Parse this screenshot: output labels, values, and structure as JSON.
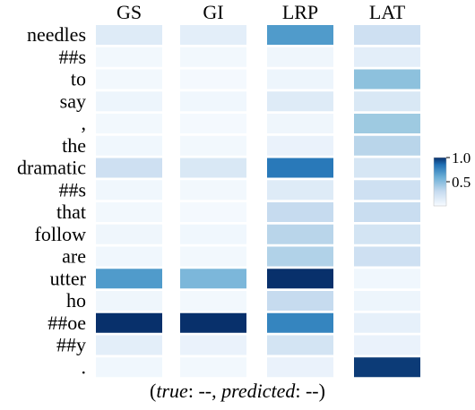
{
  "chart_data": {
    "type": "heatmap",
    "columns": [
      "GS",
      "GI",
      "LRP",
      "LAT"
    ],
    "rows": [
      "needles",
      "##s",
      "to",
      "say",
      ",",
      "the",
      "dramatic",
      "##s",
      "that",
      "follow",
      "are",
      "utter",
      "ho",
      "##oe",
      "##y",
      "."
    ],
    "values": [
      [
        0.15,
        0.12,
        0.7,
        0.25
      ],
      [
        0.03,
        0.03,
        0.05,
        0.12
      ],
      [
        0.03,
        0.02,
        0.06,
        0.5
      ],
      [
        0.06,
        0.04,
        0.15,
        0.18
      ],
      [
        0.03,
        0.02,
        0.05,
        0.45
      ],
      [
        0.04,
        0.03,
        0.08,
        0.35
      ],
      [
        0.25,
        0.18,
        0.85,
        0.2
      ],
      [
        0.04,
        0.03,
        0.15,
        0.25
      ],
      [
        0.03,
        0.02,
        0.3,
        0.28
      ],
      [
        0.05,
        0.04,
        0.35,
        0.22
      ],
      [
        0.04,
        0.03,
        0.38,
        0.25
      ],
      [
        0.7,
        0.55,
        1.0,
        0.04
      ],
      [
        0.05,
        0.03,
        0.3,
        0.06
      ],
      [
        1.0,
        1.0,
        0.8,
        0.1
      ],
      [
        0.12,
        0.08,
        0.22,
        0.08
      ],
      [
        0.04,
        0.03,
        0.08,
        0.98
      ]
    ],
    "colorbar": {
      "min": 0.0,
      "max": 1.0,
      "ticks": [
        1.0,
        0.5
      ],
      "tick_labels": [
        "1.0",
        "0.5"
      ]
    },
    "colormap": {
      "low": "#f7fbff",
      "mid": "#6aaed6",
      "high": "#08306b"
    }
  },
  "caption": {
    "open": "(",
    "true_label": "true",
    "true_value": ": --, ",
    "predicted_label": "predicted",
    "predicted_value": ": --)"
  }
}
